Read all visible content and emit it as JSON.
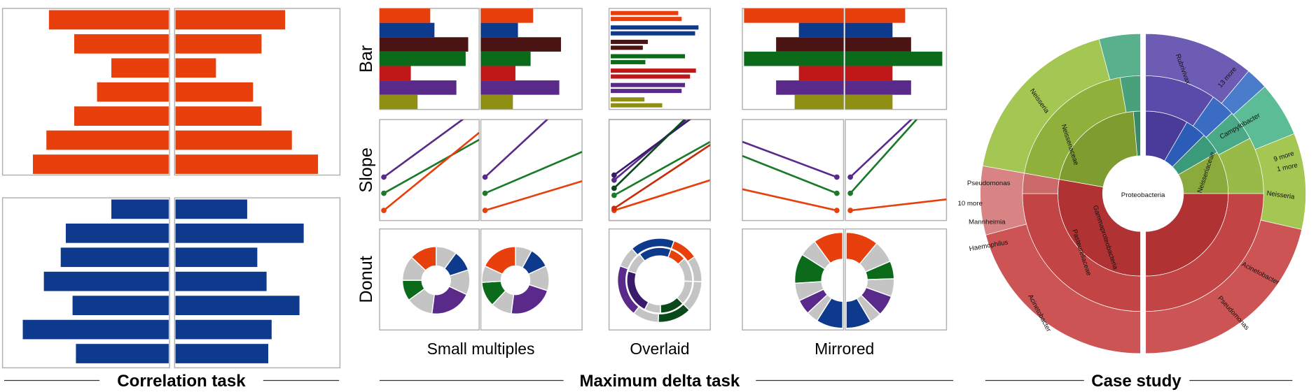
{
  "correlation_task": {
    "title": "Correlation task",
    "xlim": [
      0,
      195
    ],
    "panels": [
      {
        "color": "#e8400c",
        "left": [
          142,
          112,
          68,
          85,
          112,
          145,
          161
        ],
        "right": [
          130,
          102,
          48,
          92,
          102,
          138,
          169
        ]
      },
      {
        "color": "#0d3a8c",
        "left": [
          68,
          122,
          128,
          148,
          114,
          173,
          110
        ],
        "right": [
          85,
          152,
          97,
          108,
          147,
          114,
          110
        ]
      }
    ]
  },
  "maximum_delta_task": {
    "title": "Maximum delta task",
    "rows": [
      "Bar",
      "Slope",
      "Donut"
    ],
    "columns": [
      "Small multiples",
      "Overlaid",
      "Mirrored"
    ],
    "bar": {
      "xlim": [
        0,
        120
      ],
      "colors": [
        "#e8400c",
        "#0d3a8c",
        "#4a1414",
        "#0c6b1a",
        "#c01818",
        "#5a2a8a",
        "#8f8f14"
      ],
      "small_multiples": {
        "a": [
          60,
          65,
          105,
          102,
          37,
          91,
          45
        ],
        "b": [
          62,
          44,
          95,
          59,
          41,
          93,
          38
        ]
      },
      "overlaid": {
        "a": [
          80,
          104,
          44,
          88,
          101,
          88,
          40
        ],
        "b": [
          84,
          100,
          38,
          41,
          94,
          84,
          61
        ]
      },
      "mirrored": {
        "a": [
          118,
          53,
          80,
          118,
          53,
          80,
          58
        ],
        "b": [
          71,
          56,
          78,
          115,
          56,
          78,
          56
        ]
      }
    },
    "slope": {
      "ylim": [
        0,
        100
      ],
      "small_multiples": {
        "a": [
          {
            "color": "#5a2a8a",
            "values": [
              43,
              112
            ]
          },
          {
            "color": "#1a7a2a",
            "values": [
              27,
              80
            ]
          },
          {
            "color": "#e8400c",
            "values": [
              10,
              87
            ]
          }
        ],
        "b": [
          {
            "color": "#5a2a8a",
            "values": [
              43,
              132
            ]
          },
          {
            "color": "#1a7a2a",
            "values": [
              27,
              68
            ]
          },
          {
            "color": "#e8400c",
            "values": [
              10,
              39
            ]
          }
        ]
      },
      "overlaid": {
        "a": [
          {
            "color": "#5a2a8a",
            "values": [
              40,
              120
            ]
          },
          {
            "color": "#1a7a2a",
            "values": [
              25,
              78
            ]
          },
          {
            "color": "#e8400c",
            "values": [
              10,
              40
            ]
          }
        ],
        "b": [
          {
            "color": "#3a1a6a",
            "values": [
              45,
              115
            ]
          },
          {
            "color": "#0a4a1a",
            "values": [
              32,
              125
            ]
          },
          {
            "color": "#c82a0a",
            "values": [
              12,
              75
            ]
          }
        ]
      },
      "mirrored": {
        "a": [
          {
            "color": "#5a2a8a",
            "values": [
              43,
              78
            ]
          },
          {
            "color": "#1a7a2a",
            "values": [
              27,
              64
            ]
          },
          {
            "color": "#e8400c",
            "values": [
              10,
              31
            ]
          }
        ],
        "b": [
          {
            "color": "#5a2a8a",
            "values": [
              43,
              133
            ]
          },
          {
            "color": "#1a7a2a",
            "values": [
              27,
              133
            ]
          },
          {
            "color": "#e8400c",
            "values": [
              10,
              21
            ]
          }
        ]
      }
    },
    "donut": {
      "small_multiples": {
        "a": [
          {
            "color": "#c4c4c4",
            "value": 10
          },
          {
            "color": "#0d3a8c",
            "value": 10
          },
          {
            "color": "#c4c4c4",
            "value": 12
          },
          {
            "color": "#5a2a8a",
            "value": 20
          },
          {
            "color": "#c4c4c4",
            "value": 13
          },
          {
            "color": "#0c6b1a",
            "value": 10
          },
          {
            "color": "#c4c4c4",
            "value": 12
          },
          {
            "color": "#e8400c",
            "value": 13
          }
        ],
        "b": [
          {
            "color": "#c4c4c4",
            "value": 8
          },
          {
            "color": "#0d3a8c",
            "value": 10
          },
          {
            "color": "#c4c4c4",
            "value": 12
          },
          {
            "color": "#5a2a8a",
            "value": 22
          },
          {
            "color": "#c4c4c4",
            "value": 10
          },
          {
            "color": "#0c6b1a",
            "value": 12
          },
          {
            "color": "#c4c4c4",
            "value": 8
          },
          {
            "color": "#e8400c",
            "value": 18
          }
        ]
      },
      "overlaid": {
        "a": [
          {
            "color": "#e8400c",
            "value": 10
          },
          {
            "color": "#c4c4c4",
            "value": 10
          },
          {
            "color": "#c4c4c4",
            "value": 12
          },
          {
            "color": "#0a4a1a",
            "value": 13
          },
          {
            "color": "#c4c4c4",
            "value": 10
          },
          {
            "color": "#5a2a8a",
            "value": 20
          },
          {
            "color": "#c4c4c4",
            "value": 8
          },
          {
            "color": "#0d3a8c",
            "value": 17
          }
        ],
        "b": [
          {
            "color": "#e8400c",
            "value": 8
          },
          {
            "color": "#c4c4c4",
            "value": 12
          },
          {
            "color": "#c4c4c4",
            "value": 12
          },
          {
            "color": "#0a4a1a",
            "value": 12
          },
          {
            "color": "#c4c4c4",
            "value": 8
          },
          {
            "color": "#3a1a6a",
            "value": 22
          },
          {
            "color": "#c4c4c4",
            "value": 10
          },
          {
            "color": "#0d3a8c",
            "value": 16
          }
        ]
      },
      "mirrored": {
        "a": [
          {
            "color": "#e8400c",
            "value": 20
          },
          {
            "color": "#c4c4c4",
            "value": 12
          },
          {
            "color": "#0c6b1a",
            "value": 20
          },
          {
            "color": "#c4c4c4",
            "value": 12
          },
          {
            "color": "#5a2a8a",
            "value": 10
          },
          {
            "color": "#c4c4c4",
            "value": 8
          },
          {
            "color": "#0d3a8c",
            "value": 18
          }
        ],
        "b": [
          {
            "color": "#e8400c",
            "value": 22
          },
          {
            "color": "#c4c4c4",
            "value": 15
          },
          {
            "color": "#0c6b1a",
            "value": 12
          },
          {
            "color": "#c4c4c4",
            "value": 12
          },
          {
            "color": "#5a2a8a",
            "value": 14
          },
          {
            "color": "#c4c4c4",
            "value": 8
          },
          {
            "color": "#0d3a8c",
            "value": 17
          }
        ]
      }
    }
  },
  "case_study": {
    "title": "Case study",
    "left_rings": [
      [
        {
          "color": "#b03232",
          "value": 100
        },
        {
          "color": "#7e9c30",
          "value": 75
        },
        {
          "color": "#3a8a6a",
          "value": 5
        }
      ],
      [
        {
          "color": "#c24444",
          "value": 90
        },
        {
          "color": "#cc6a6a",
          "value": 10
        },
        {
          "color": "#8fb03a",
          "value": 70
        },
        {
          "color": "#48a07c",
          "value": 10
        }
      ],
      [
        {
          "color": "#cc5454",
          "value": 75
        },
        {
          "color": "#d88484",
          "value": 25
        },
        {
          "color": "#a4c652",
          "value": 65
        },
        {
          "color": "#58b08c",
          "value": 15
        }
      ]
    ],
    "right_rings": [
      [
        {
          "color": "#4a3a9a",
          "value": 30
        },
        {
          "color": "#2a5cb8",
          "value": 15
        },
        {
          "color": "#3a9a7a",
          "value": 15
        },
        {
          "color": "#8aaa3c",
          "value": 30
        },
        {
          "color": "#b03232",
          "value": 90
        }
      ],
      [
        {
          "color": "#5a4aaa",
          "value": 35
        },
        {
          "color": "#3a6cc4",
          "value": 12
        },
        {
          "color": "#4aaa88",
          "value": 15
        },
        {
          "color": "#98ba48",
          "value": 28
        },
        {
          "color": "#c24444",
          "value": 90
        }
      ],
      [
        {
          "color": "#6c5cb4",
          "value": 40
        },
        {
          "color": "#4a7ccc",
          "value": 8
        },
        {
          "color": "#5cbc96",
          "value": 20
        },
        {
          "color": "#a4c652",
          "value": 35
        },
        {
          "color": "#cc5454",
          "value": 77
        }
      ]
    ],
    "labels": [
      "Proteobacteria",
      "Neisseria",
      "Neisseria",
      "Pseudomonas",
      "10 more",
      "Mannheimia",
      "Haemophilus",
      "Acinetobacter",
      "Pasteurellaceae",
      "Gammaproteobacteria",
      "Neisseriaceae",
      "Rubrivivax",
      "Campylobacter",
      "13 more",
      "9 more",
      "1 more",
      "Acinetobacter",
      "Pseudomonas",
      "Neisseriaceae"
    ]
  }
}
